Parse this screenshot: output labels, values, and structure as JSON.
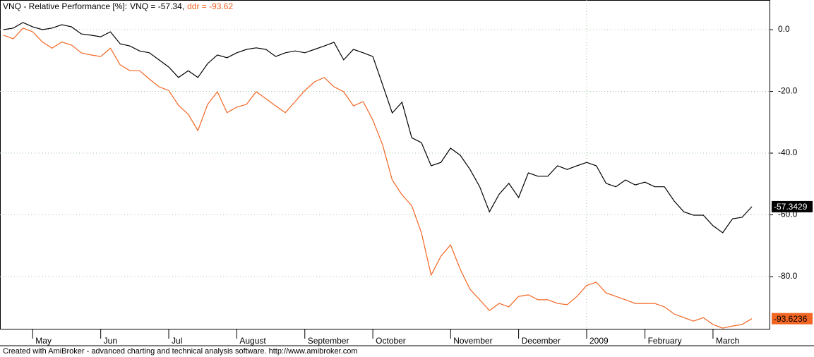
{
  "chart_data": {
    "type": "line",
    "title": "VNQ - Relative Performance [%]:",
    "footer": "Created with AmiBroker - advanced charting and technical analysis software. http://www.amibroker.com",
    "categories": [
      null,
      null,
      null,
      "May",
      null,
      null,
      null,
      null,
      null,
      null,
      "Jun",
      null,
      null,
      null,
      null,
      null,
      null,
      "Jul",
      null,
      null,
      null,
      null,
      null,
      null,
      "August",
      null,
      null,
      null,
      null,
      null,
      null,
      "September",
      null,
      null,
      null,
      null,
      null,
      null,
      "October",
      null,
      null,
      null,
      null,
      null,
      null,
      null,
      "November",
      null,
      null,
      null,
      null,
      null,
      null,
      "December",
      null,
      null,
      null,
      null,
      null,
      null,
      "2009",
      null,
      null,
      null,
      null,
      null,
      "February",
      null,
      null,
      null,
      null,
      null,
      null,
      "March",
      null,
      null,
      null,
      null
    ],
    "series": [
      {
        "name": "VNQ = -57.34,",
        "color": "#000000",
        "label_text_color": "#ffffff",
        "values": [
          0,
          0.5,
          2.3,
          0.9,
          0,
          0.5,
          1.6,
          0.9,
          -1.4,
          -1.8,
          -2.3,
          -0.7,
          -4.6,
          -5.3,
          -6.9,
          -7.5,
          -9.8,
          -12.1,
          -15.5,
          -13.3,
          -15.5,
          -11,
          -8.2,
          -9.1,
          -7.5,
          -6.4,
          -5.9,
          -6.4,
          -8.7,
          -7.5,
          -6.9,
          -7.5,
          -6.4,
          -5.3,
          -4.1,
          -9.8,
          -6.4,
          -7.5,
          -8.7,
          -17.8,
          -27,
          -23.5,
          -35,
          -36.6,
          -44.1,
          -43,
          -38.4,
          -40.7,
          -45.3,
          -50.9,
          -59,
          -53.3,
          -49.8,
          -54.4,
          -46.4,
          -47.5,
          -47.5,
          -44.1,
          -45.3,
          -44.1,
          -43,
          -44.1,
          -49.8,
          -50.9,
          -48.7,
          -50.3,
          -49.4,
          -50.9,
          -50.9,
          -55.5,
          -59,
          -60.1,
          -60.1,
          -63.5,
          -65.8,
          -61.3,
          -60.8,
          -57.3429
        ],
        "value_labels": [
          null,
          null,
          null,
          null,
          null,
          null,
          null,
          null,
          null,
          null,
          null,
          null,
          null,
          null,
          null,
          null,
          null,
          null,
          null,
          null,
          null,
          null,
          null,
          null,
          null,
          null,
          null,
          null,
          null,
          null,
          null,
          null,
          null,
          null,
          null,
          null,
          null,
          null,
          null,
          null,
          null,
          null,
          null,
          null,
          null,
          null,
          null,
          null,
          null,
          null,
          null,
          null,
          null,
          null,
          null,
          null,
          null,
          null,
          null,
          null,
          null,
          null,
          null,
          null,
          null,
          null,
          null,
          null,
          null,
          null,
          null,
          null,
          null,
          null,
          null,
          null,
          null,
          "-57.3429"
        ]
      },
      {
        "name": "ddr = -93.62",
        "color": "#f26522",
        "label_text_color": "#000000",
        "values": [
          -1.8,
          -3,
          0.5,
          -0.7,
          -4,
          -6,
          -4,
          -5,
          -7.5,
          -8.2,
          -8.7,
          -6,
          -11.4,
          -13.3,
          -13.3,
          -16,
          -18.5,
          -19.7,
          -24.5,
          -27.4,
          -32.7,
          -24.2,
          -20.1,
          -26.9,
          -25.1,
          -24.2,
          -20.1,
          -22.4,
          -24.7,
          -26.9,
          -23.3,
          -19.7,
          -16.9,
          -15.5,
          -18.5,
          -20.1,
          -24.7,
          -23.3,
          -29.3,
          -37.3,
          -48.7,
          -53.5,
          -57,
          -65.8,
          -79.5,
          -73.4,
          -69.7,
          -77.7,
          -84.1,
          -87.5,
          -91,
          -88.7,
          -89.8,
          -86.4,
          -85.9,
          -87.5,
          -87.5,
          -88.7,
          -89.1,
          -86.4,
          -82.9,
          -81.8,
          -85.3,
          -86.4,
          -87.5,
          -88.7,
          -88.7,
          -88.7,
          -89.8,
          -92.1,
          -93.3,
          -94.4,
          -93.3,
          -95.5,
          -96.7,
          -96,
          -95.5,
          -93.6236
        ],
        "value_labels": [
          null,
          null,
          null,
          null,
          null,
          null,
          null,
          null,
          null,
          null,
          null,
          null,
          null,
          null,
          null,
          null,
          null,
          null,
          null,
          null,
          null,
          null,
          null,
          null,
          null,
          null,
          null,
          null,
          null,
          null,
          null,
          null,
          null,
          null,
          null,
          null,
          null,
          null,
          null,
          null,
          null,
          null,
          null,
          null,
          null,
          null,
          null,
          null,
          null,
          null,
          null,
          null,
          null,
          null,
          null,
          null,
          null,
          null,
          null,
          null,
          null,
          null,
          null,
          null,
          null,
          null,
          null,
          null,
          null,
          null,
          null,
          null,
          null,
          null,
          null,
          null,
          null,
          "-93.6236"
        ]
      }
    ],
    "ylim": [
      -96.9,
      9.6
    ],
    "yticks": [
      {
        "value": 0,
        "label": "0.0"
      },
      {
        "value": -20,
        "label": "-20.0"
      },
      {
        "value": -40,
        "label": "-40.0"
      },
      {
        "value": -60,
        "label": "-60.0"
      },
      {
        "value": -80,
        "label": "-80.0"
      }
    ],
    "grid": true,
    "grid_color": "#a0c8a0"
  }
}
